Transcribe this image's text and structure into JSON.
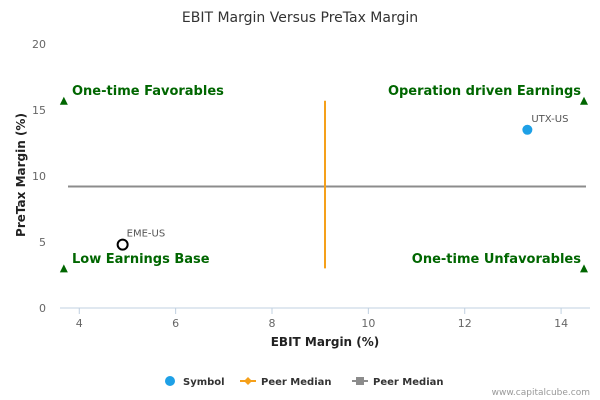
{
  "chart_data": {
    "type": "scatter",
    "title": "EBIT Margin Versus PreTax Margin",
    "xlabel": "EBIT Margin (%)",
    "ylabel": "PreTax Margin (%)",
    "xlim": [
      3.6,
      14.6
    ],
    "ylim": [
      0,
      20
    ],
    "x_ticks": [
      4,
      6,
      8,
      10,
      12,
      14
    ],
    "y_ticks": [
      0,
      5,
      10,
      15,
      20
    ],
    "points": [
      {
        "label": "UTX-US",
        "x": 13.3,
        "y": 13.5,
        "style": "filled",
        "color": "#1ea0e6"
      },
      {
        "label": "EME-US",
        "x": 4.9,
        "y": 4.8,
        "style": "hollow",
        "color": "#000000"
      }
    ],
    "peer_median_x": {
      "value": 9.1,
      "y_range": [
        3.0,
        15.7
      ],
      "color": "#f5a01a"
    },
    "peer_median_y": {
      "value": 9.2,
      "color": "#8c8c8c"
    },
    "quadrant_labels": {
      "top_left": "One-time Favorables",
      "top_right": "Operation driven Earnings",
      "bottom_left": "Low Earnings Base",
      "bottom_right": "One-time Unfavorables"
    },
    "quadrant_color": "#006600",
    "legend": [
      {
        "name": "Symbol",
        "marker": "circle",
        "color": "#1ea0e6"
      },
      {
        "name": "Peer Median",
        "marker": "diamond",
        "color": "#f5a01a"
      },
      {
        "name": "Peer Median",
        "marker": "square",
        "color": "#8c8c8c"
      }
    ]
  },
  "credit": "www.capitalcube.com"
}
